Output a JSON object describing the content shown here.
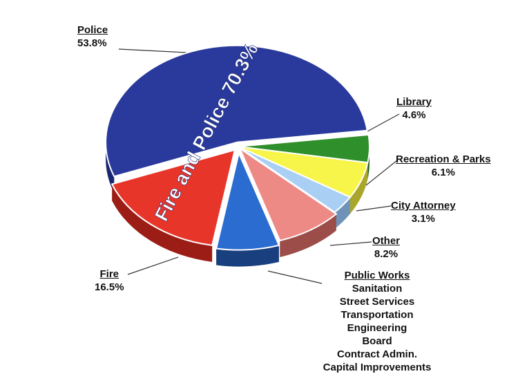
{
  "chart_data": {
    "type": "pie",
    "title": "",
    "overlay_label": "Fire and Police 70.3%",
    "slices": [
      {
        "label": "Police",
        "value": 53.8,
        "value_label": "53.8%",
        "color": "#2a3a9c",
        "side": "#1b2672"
      },
      {
        "label": "Library",
        "value": 4.6,
        "value_label": "4.6%",
        "color": "#2f8f2a",
        "side": "#1f5e1b"
      },
      {
        "label": "Recreation & Parks",
        "value": 6.1,
        "value_label": "6.1%",
        "color": "#f7f54a",
        "side": "#a9a72b"
      },
      {
        "label": "City Attorney",
        "value": 3.1,
        "value_label": "3.1%",
        "color": "#a9cff5",
        "side": "#6f93b8"
      },
      {
        "label": "Other",
        "value": 8.2,
        "value_label": "8.2%",
        "color": "#ee8a86",
        "side": "#9c4d49"
      },
      {
        "label": "Public Works",
        "value": 7.7,
        "value_label": "",
        "color": "#2b6cd0",
        "side": "#1a3f7e"
      },
      {
        "label": "Fire",
        "value": 16.5,
        "value_label": "16.5%",
        "color": "#e8352a",
        "side": "#9b1d16"
      }
    ],
    "public_works_items": [
      "Sanitation",
      "Street Services",
      "Transportation",
      "Engineering",
      "Board",
      "Contract Admin.",
      "Capital Improvements"
    ]
  }
}
